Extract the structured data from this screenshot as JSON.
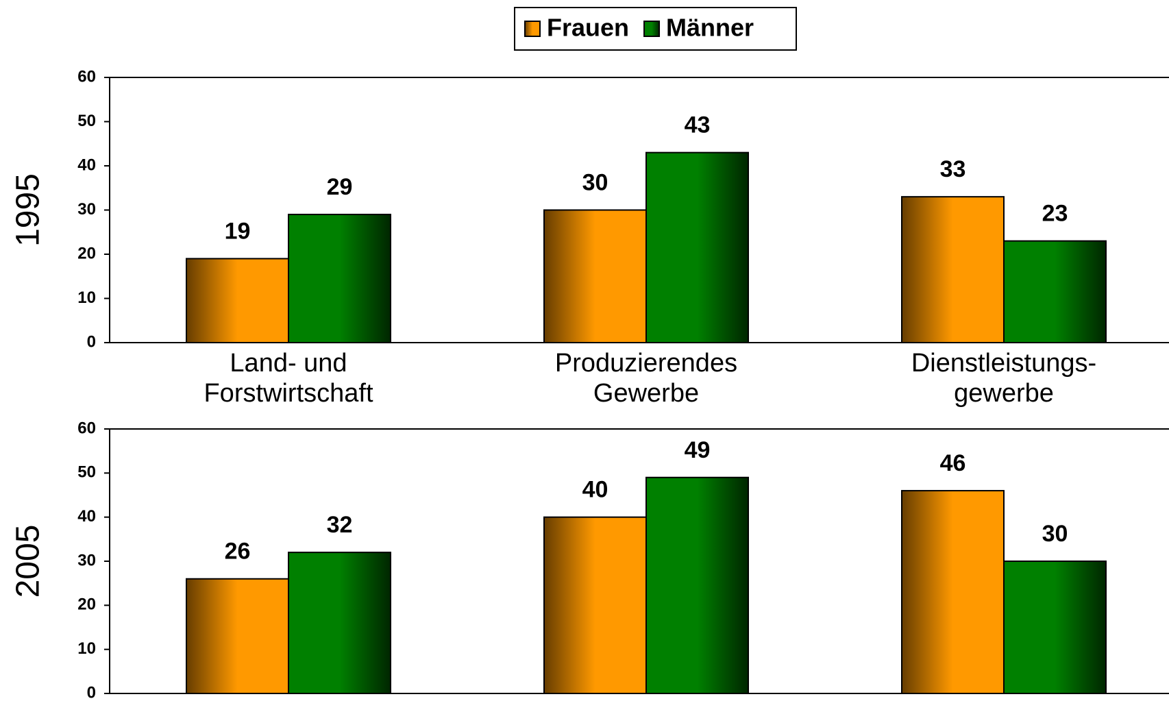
{
  "chart_data": [
    {
      "type": "bar",
      "ylabel": "1995",
      "categories": [
        "Land- und\nForstwirtschaft",
        "Produzierendes\nGewerbe",
        "Dienstleistungs-\ngewerbe"
      ],
      "series": [
        {
          "name": "Frauen",
          "color": "#ff9900",
          "values": [
            19,
            30,
            33
          ]
        },
        {
          "name": "Männer",
          "color": "#008000",
          "values": [
            29,
            43,
            23
          ]
        }
      ],
      "ylim": [
        0,
        60
      ],
      "yticks": [
        0,
        10,
        20,
        30,
        40,
        50,
        60
      ],
      "legend": "top"
    },
    {
      "type": "bar",
      "ylabel": "2005",
      "categories": [
        null,
        null,
        null
      ],
      "series": [
        {
          "color": "#ff9900",
          "values": [
            26,
            40,
            46
          ]
        },
        {
          "color": "#008000",
          "values": [
            32,
            49,
            30
          ]
        }
      ],
      "ylim": [
        0,
        60
      ],
      "yticks": [
        0,
        10,
        20,
        30,
        40,
        50,
        60
      ]
    }
  ]
}
